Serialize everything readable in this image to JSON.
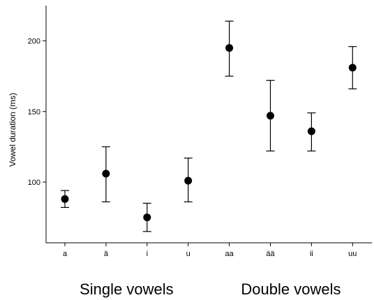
{
  "chart_data": {
    "type": "scatter",
    "title": "",
    "xlabel": "",
    "ylabel": "Vowel duration (ms)",
    "categories": [
      "a",
      "ä",
      "i",
      "u",
      "aa",
      "ää",
      "ii",
      "uu"
    ],
    "values": [
      88,
      106,
      75,
      101,
      195,
      147,
      136,
      181
    ],
    "error_low": [
      82,
      86,
      65,
      86,
      175,
      122,
      122,
      166
    ],
    "error_high": [
      94,
      125,
      85,
      117,
      214,
      172,
      149,
      196
    ],
    "yticks": [
      100,
      150,
      200
    ],
    "ylim": [
      57,
      225
    ],
    "grid": false,
    "legend": "none",
    "groups": [
      {
        "label": "Single vowels",
        "categories": [
          "a",
          "ä",
          "i",
          "u"
        ]
      },
      {
        "label": "Double vowels",
        "categories": [
          "aa",
          "ää",
          "ii",
          "uu"
        ]
      }
    ],
    "marker_color": "#000000"
  }
}
